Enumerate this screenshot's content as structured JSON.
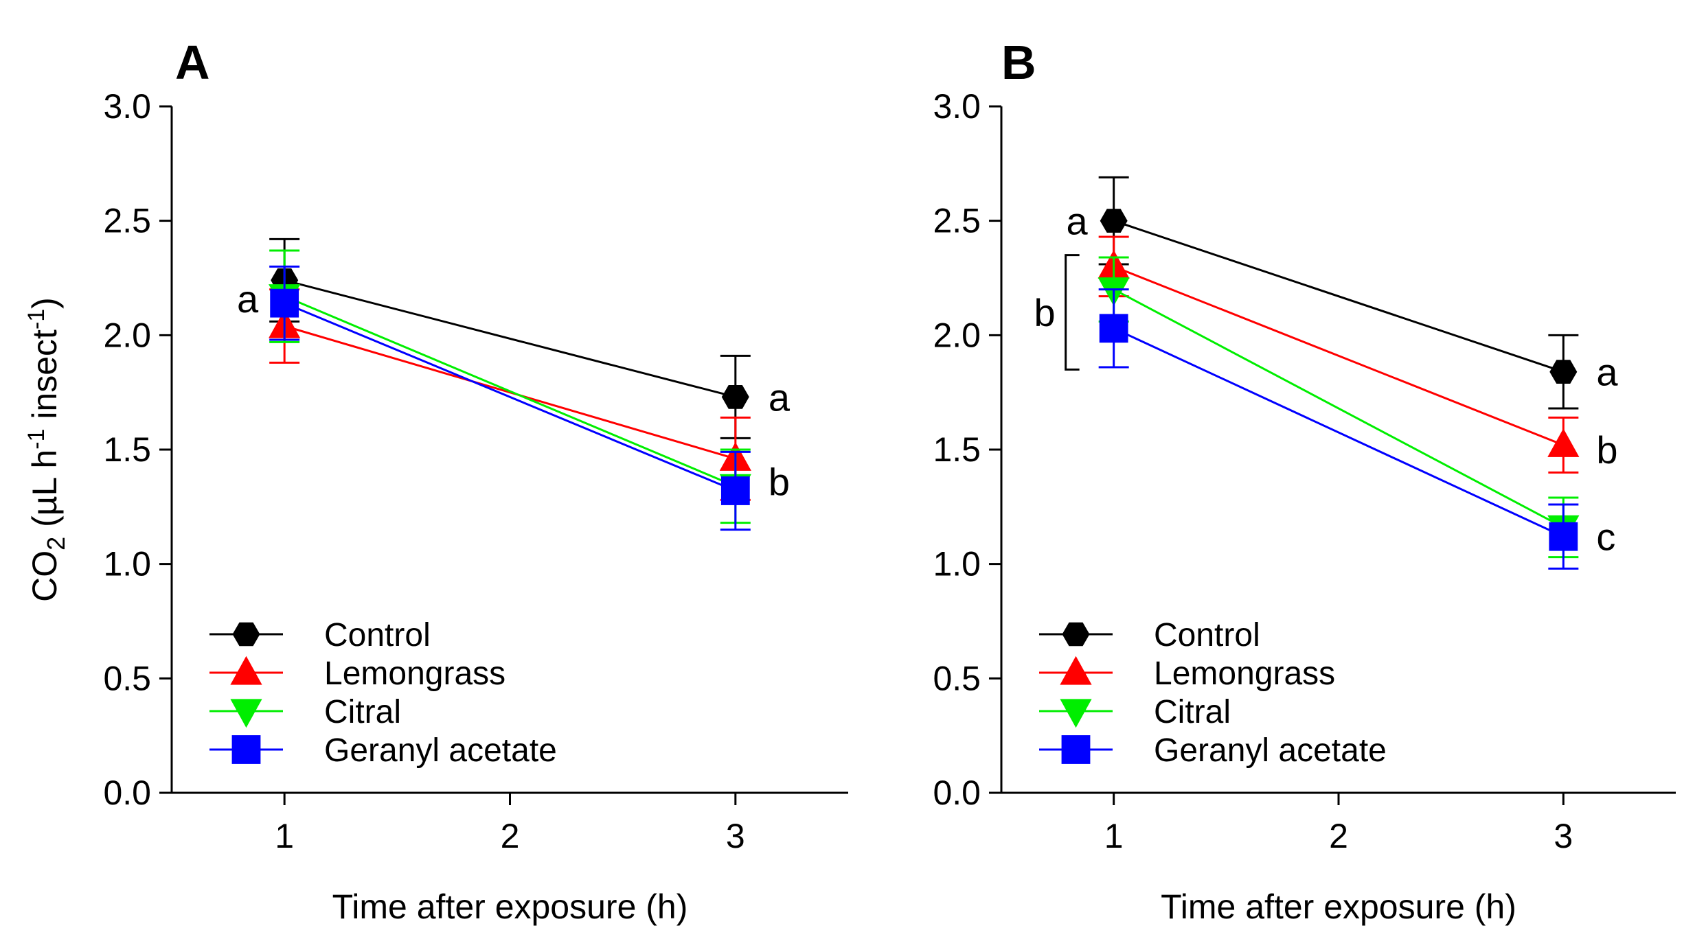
{
  "chart_data": [
    {
      "panel": "A",
      "type": "line",
      "xlabel": "Time after exposure (h)",
      "ylabel": {
        "main": "CO",
        "sub": "2",
        "units_prefix": " (µL h",
        "sup1": "-1",
        "units_mid": " insect",
        "sup2": "-1",
        "units_suffix": ")"
      },
      "x_ticks": [
        1,
        2,
        3
      ],
      "y_ticks": [
        "0.0",
        "0.5",
        "1.0",
        "1.5",
        "2.0",
        "2.5",
        "3.0"
      ],
      "xlim": [
        0.5,
        3.5
      ],
      "ylim": [
        0,
        3
      ],
      "grid": false,
      "legend_position": "bottom-left",
      "x": [
        1,
        3
      ],
      "series": [
        {
          "name": "Control",
          "color": "#000000",
          "marker": "hexagon",
          "values": [
            2.24,
            1.73
          ],
          "errors": [
            0.18,
            0.18
          ]
        },
        {
          "name": "Lemongrass",
          "color": "#ff0000",
          "marker": "triangle-up",
          "values": [
            2.04,
            1.46
          ],
          "errors": [
            0.16,
            0.18
          ]
        },
        {
          "name": "Citral",
          "color": "#00ee00",
          "marker": "triangle-down",
          "values": [
            2.17,
            1.34
          ],
          "errors": [
            0.2,
            0.16
          ]
        },
        {
          "name": "Geranyl acetate",
          "color": "#0000ff",
          "marker": "square",
          "values": [
            2.14,
            1.32
          ],
          "errors": [
            0.16,
            0.17
          ]
        }
      ],
      "annotations": [
        {
          "text": "a",
          "at_x": 1,
          "at_y": 2.16,
          "side": "left"
        },
        {
          "text": "a",
          "at_x": 3,
          "at_y": 1.73,
          "side": "right"
        },
        {
          "text": "b",
          "at_x": 3,
          "at_y": 1.36,
          "side": "right"
        }
      ]
    },
    {
      "panel": "B",
      "type": "line",
      "xlabel": "Time after exposure (h)",
      "x_ticks": [
        1,
        2,
        3
      ],
      "y_ticks": [
        "0.0",
        "0.5",
        "1.0",
        "1.5",
        "2.0",
        "2.5",
        "3.0"
      ],
      "xlim": [
        0.5,
        3.5
      ],
      "ylim": [
        0,
        3
      ],
      "grid": false,
      "legend_position": "bottom-left",
      "x": [
        1,
        3
      ],
      "series": [
        {
          "name": "Control",
          "color": "#000000",
          "marker": "hexagon",
          "values": [
            2.5,
            1.84
          ],
          "errors": [
            0.19,
            0.16
          ]
        },
        {
          "name": "Lemongrass",
          "color": "#ff0000",
          "marker": "triangle-up",
          "values": [
            2.3,
            1.52
          ],
          "errors": [
            0.13,
            0.12
          ]
        },
        {
          "name": "Citral",
          "color": "#00ee00",
          "marker": "triangle-down",
          "values": [
            2.2,
            1.16
          ],
          "errors": [
            0.14,
            0.13
          ]
        },
        {
          "name": "Geranyl acetate",
          "color": "#0000ff",
          "marker": "square",
          "values": [
            2.03,
            1.12
          ],
          "errors": [
            0.17,
            0.14
          ]
        }
      ],
      "annotations": [
        {
          "text": "a",
          "at_x": 1,
          "at_y": 2.5,
          "side": "left"
        },
        {
          "text": "b",
          "at_x": 1,
          "at_y": 2.1,
          "side": "left",
          "bracket": [
            1.85,
            2.35
          ]
        },
        {
          "text": "a",
          "at_x": 3,
          "at_y": 1.84,
          "side": "right"
        },
        {
          "text": "b",
          "at_x": 3,
          "at_y": 1.5,
          "side": "right"
        },
        {
          "text": "c",
          "at_x": 3,
          "at_y": 1.12,
          "side": "right"
        }
      ]
    }
  ]
}
